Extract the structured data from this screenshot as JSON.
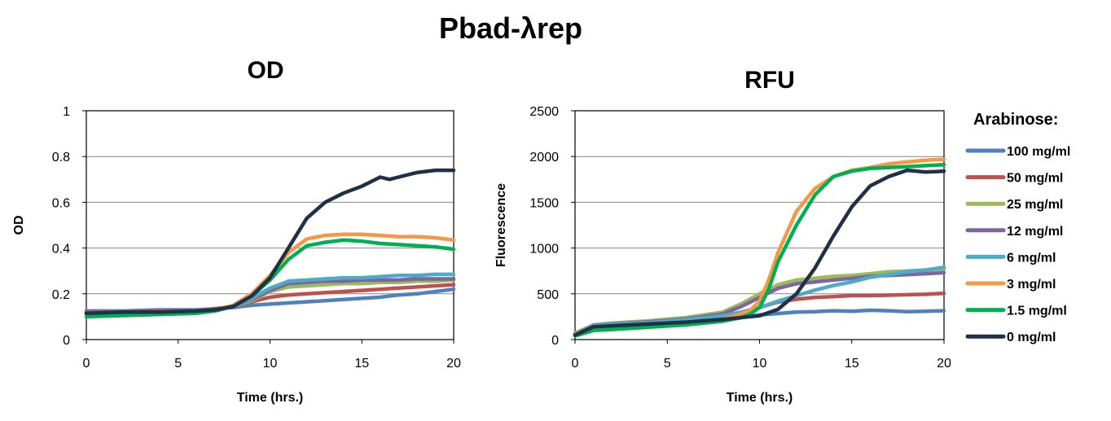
{
  "title": "Pbad-λrep",
  "legend": {
    "title": "Arabinose:",
    "placement": "right",
    "entries": [
      {
        "label": "100 mg/ml",
        "color": "#4f81bd"
      },
      {
        "label": "50 mg/ml",
        "color": "#c0504d"
      },
      {
        "label": "25 mg/ml",
        "color": "#9bbb59"
      },
      {
        "label": "12 mg/ml",
        "color": "#8064a2"
      },
      {
        "label": "6 mg/ml",
        "color": "#4bacc6"
      },
      {
        "label": "3 mg/ml",
        "color": "#f79646"
      },
      {
        "label": "1.5 mg/ml",
        "color": "#00b050"
      },
      {
        "label": "0 mg/ml",
        "color": "#1f3047"
      }
    ]
  },
  "chart_data": [
    {
      "type": "line",
      "title": "OD",
      "xlabel": "Time (hrs.)",
      "ylabel": "OD",
      "xlim": [
        0,
        20
      ],
      "ylim": [
        0,
        1
      ],
      "xticks": [
        0,
        5,
        10,
        15,
        20
      ],
      "yticks": [
        0,
        0.2,
        0.4,
        0.6,
        0.8,
        1
      ],
      "ytick_labels": [
        "0",
        "0.2",
        "0.4",
        "0.6",
        "0.8",
        "1"
      ],
      "grid": "horizontal",
      "series": [
        {
          "name": "100 mg/ml",
          "color": "#4f81bd",
          "x": [
            0,
            2,
            4,
            6,
            7,
            8,
            9,
            10,
            11,
            12,
            13,
            14,
            15,
            16,
            17,
            18,
            19,
            20
          ],
          "y": [
            0.125,
            0.125,
            0.13,
            0.13,
            0.135,
            0.14,
            0.15,
            0.155,
            0.16,
            0.165,
            0.17,
            0.175,
            0.18,
            0.185,
            0.195,
            0.2,
            0.21,
            0.22
          ]
        },
        {
          "name": "50 mg/ml",
          "color": "#c0504d",
          "x": [
            0,
            2,
            4,
            6,
            7,
            8,
            9,
            10,
            11,
            12,
            13,
            14,
            15,
            16,
            17,
            18,
            19,
            20
          ],
          "y": [
            0.12,
            0.12,
            0.125,
            0.125,
            0.135,
            0.145,
            0.165,
            0.185,
            0.195,
            0.2,
            0.205,
            0.21,
            0.215,
            0.22,
            0.225,
            0.23,
            0.235,
            0.24
          ]
        },
        {
          "name": "25 mg/ml",
          "color": "#9bbb59",
          "x": [
            0,
            2,
            4,
            6,
            7,
            8,
            9,
            10,
            11,
            12,
            13,
            14,
            15,
            16,
            17,
            18,
            19,
            20
          ],
          "y": [
            0.115,
            0.12,
            0.12,
            0.125,
            0.13,
            0.145,
            0.17,
            0.21,
            0.23,
            0.235,
            0.24,
            0.245,
            0.245,
            0.25,
            0.25,
            0.255,
            0.255,
            0.26
          ]
        },
        {
          "name": "12 mg/ml",
          "color": "#8064a2",
          "x": [
            0,
            2,
            4,
            6,
            7,
            8,
            9,
            10,
            11,
            12,
            13,
            14,
            15,
            16,
            17,
            18,
            19,
            20
          ],
          "y": [
            0.115,
            0.12,
            0.12,
            0.125,
            0.13,
            0.145,
            0.175,
            0.215,
            0.245,
            0.25,
            0.255,
            0.255,
            0.26,
            0.26,
            0.26,
            0.265,
            0.265,
            0.265
          ]
        },
        {
          "name": "6 mg/ml",
          "color": "#4bacc6",
          "x": [
            0,
            2,
            4,
            6,
            7,
            8,
            9,
            10,
            11,
            12,
            13,
            14,
            15,
            16,
            17,
            18,
            19,
            20
          ],
          "y": [
            0.115,
            0.12,
            0.12,
            0.125,
            0.13,
            0.145,
            0.18,
            0.225,
            0.255,
            0.26,
            0.265,
            0.27,
            0.27,
            0.275,
            0.28,
            0.28,
            0.285,
            0.285
          ]
        },
        {
          "name": "3 mg/ml",
          "color": "#f79646",
          "x": [
            0,
            2,
            4,
            6,
            7,
            8,
            9,
            10,
            11,
            12,
            13,
            14,
            15,
            16,
            17,
            18,
            19,
            20
          ],
          "y": [
            0.105,
            0.11,
            0.115,
            0.12,
            0.13,
            0.15,
            0.2,
            0.28,
            0.38,
            0.44,
            0.455,
            0.46,
            0.46,
            0.455,
            0.45,
            0.45,
            0.445,
            0.435
          ]
        },
        {
          "name": "1.5 mg/ml",
          "color": "#00b050",
          "x": [
            0,
            2,
            4,
            6,
            7,
            8,
            9,
            10,
            11,
            12,
            13,
            14,
            15,
            16,
            17,
            18,
            19,
            20
          ],
          "y": [
            0.1,
            0.105,
            0.11,
            0.115,
            0.125,
            0.145,
            0.19,
            0.26,
            0.35,
            0.41,
            0.425,
            0.435,
            0.43,
            0.42,
            0.415,
            0.41,
            0.405,
            0.395
          ]
        },
        {
          "name": "0 mg/ml",
          "color": "#1f3047",
          "x": [
            0,
            2,
            4,
            6,
            7,
            8,
            9,
            10,
            11,
            12,
            13,
            14,
            15,
            16,
            16.5,
            17,
            18,
            19,
            20
          ],
          "y": [
            0.115,
            0.12,
            0.12,
            0.125,
            0.13,
            0.145,
            0.19,
            0.27,
            0.4,
            0.53,
            0.6,
            0.64,
            0.67,
            0.71,
            0.7,
            0.71,
            0.73,
            0.74,
            0.74
          ]
        }
      ]
    },
    {
      "type": "line",
      "title": "RFU",
      "xlabel": "Time (hrs.)",
      "ylabel": "Fluorescence",
      "xlim": [
        0,
        20
      ],
      "ylim": [
        0,
        2500
      ],
      "xticks": [
        0,
        5,
        10,
        15,
        20
      ],
      "yticks": [
        0,
        500,
        1000,
        1500,
        2000,
        2500
      ],
      "ytick_labels": [
        "0",
        "500",
        "1000",
        "1500",
        "2000",
        "2500"
      ],
      "grid": "horizontal",
      "series": [
        {
          "name": "100 mg/ml",
          "color": "#4f81bd",
          "x": [
            0,
            1,
            2,
            4,
            6,
            8,
            9,
            10,
            11,
            12,
            13,
            14,
            15,
            16,
            17,
            18,
            19,
            20
          ],
          "y": [
            50,
            150,
            160,
            175,
            190,
            215,
            240,
            270,
            285,
            300,
            305,
            315,
            310,
            320,
            315,
            305,
            310,
            315
          ]
        },
        {
          "name": "50 mg/ml",
          "color": "#c0504d",
          "x": [
            0,
            1,
            2,
            4,
            6,
            8,
            9,
            10,
            11,
            12,
            13,
            14,
            15,
            16,
            17,
            18,
            19,
            20
          ],
          "y": [
            55,
            155,
            165,
            180,
            200,
            230,
            280,
            350,
            410,
            440,
            460,
            470,
            480,
            480,
            485,
            490,
            495,
            505
          ]
        },
        {
          "name": "25 mg/ml",
          "color": "#9bbb59",
          "x": [
            0,
            1,
            2,
            4,
            6,
            8,
            9,
            10,
            11,
            12,
            13,
            14,
            15,
            16,
            17,
            18,
            19,
            20
          ],
          "y": [
            70,
            160,
            180,
            205,
            240,
            300,
            390,
            500,
            600,
            650,
            670,
            690,
            700,
            720,
            740,
            750,
            760,
            770
          ]
        },
        {
          "name": "12 mg/ml",
          "color": "#8064a2",
          "x": [
            0,
            1,
            2,
            4,
            6,
            8,
            9,
            10,
            11,
            12,
            13,
            14,
            15,
            16,
            17,
            18,
            19,
            20
          ],
          "y": [
            60,
            155,
            170,
            195,
            225,
            280,
            360,
            460,
            560,
            610,
            630,
            650,
            670,
            690,
            700,
            710,
            720,
            730
          ]
        },
        {
          "name": "6 mg/ml",
          "color": "#4bacc6",
          "x": [
            0,
            1,
            2,
            4,
            6,
            8,
            9,
            10,
            11,
            12,
            13,
            14,
            15,
            16,
            17,
            18,
            19,
            20
          ],
          "y": [
            55,
            150,
            165,
            185,
            215,
            260,
            300,
            350,
            420,
            480,
            540,
            590,
            630,
            680,
            710,
            740,
            760,
            790
          ]
        },
        {
          "name": "3 mg/ml",
          "color": "#f79646",
          "x": [
            0,
            1,
            2,
            4,
            6,
            8,
            9,
            9.5,
            10,
            10.5,
            11,
            12,
            13,
            14,
            15,
            16,
            17,
            18,
            19,
            20
          ],
          "y": [
            60,
            120,
            130,
            150,
            180,
            220,
            280,
            320,
            420,
            650,
            950,
            1400,
            1650,
            1780,
            1850,
            1880,
            1920,
            1940,
            1960,
            1970
          ]
        },
        {
          "name": "1.5 mg/ml",
          "color": "#00b050",
          "x": [
            0,
            1,
            2,
            4,
            6,
            8,
            9,
            9.5,
            10,
            10.5,
            11,
            12,
            13,
            14,
            15,
            16,
            17,
            18,
            19,
            20
          ],
          "y": [
            40,
            100,
            110,
            135,
            160,
            200,
            240,
            280,
            350,
            550,
            850,
            1250,
            1580,
            1780,
            1840,
            1870,
            1880,
            1890,
            1900,
            1910
          ]
        },
        {
          "name": "0 mg/ml",
          "color": "#1f3047",
          "x": [
            0,
            1,
            2,
            4,
            6,
            8,
            9,
            10,
            11,
            12,
            13,
            14,
            15,
            16,
            17,
            18,
            19,
            20
          ],
          "y": [
            50,
            140,
            150,
            170,
            190,
            220,
            240,
            260,
            330,
            500,
            780,
            1130,
            1450,
            1680,
            1780,
            1850,
            1830,
            1840
          ]
        }
      ]
    }
  ]
}
